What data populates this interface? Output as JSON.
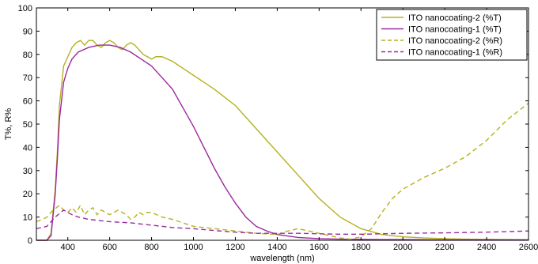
{
  "chart_data": {
    "type": "line",
    "title": "",
    "xlabel": "wavelength (nm)",
    "ylabel": "T%, R%",
    "xlim": [
      250,
      2600
    ],
    "ylim": [
      0,
      100
    ],
    "xticks": [
      400,
      600,
      800,
      1000,
      1200,
      1400,
      1600,
      1800,
      2000,
      2200,
      2400,
      2600
    ],
    "yticks": [
      0,
      10,
      20,
      30,
      40,
      50,
      60,
      70,
      80,
      90,
      100
    ],
    "grid": false,
    "legend_position": "top-right",
    "series": [
      {
        "name": "ITO nanocoating-2 (%T)",
        "color": "#b5b21e",
        "dash": "solid",
        "x": [
          250,
          300,
          320,
          340,
          350,
          360,
          380,
          400,
          420,
          440,
          460,
          480,
          500,
          520,
          540,
          560,
          580,
          600,
          620,
          640,
          660,
          680,
          700,
          720,
          740,
          760,
          780,
          800,
          820,
          850,
          900,
          950,
          1000,
          1100,
          1200,
          1300,
          1400,
          1500,
          1600,
          1700,
          1800,
          1900,
          2000,
          2100,
          2200,
          2300,
          2400,
          2500,
          2600
        ],
        "y": [
          0,
          0,
          3,
          22,
          38,
          58,
          75,
          79,
          83,
          85,
          86,
          84,
          86,
          86,
          84,
          83,
          85,
          86,
          85,
          83,
          82,
          84,
          85,
          84,
          82,
          80,
          79,
          78,
          79,
          79,
          77,
          74,
          71,
          65,
          58,
          48,
          38,
          28,
          18,
          10,
          5,
          2.5,
          1.5,
          1,
          0.7,
          0.5,
          0.4,
          0.3,
          0.2
        ]
      },
      {
        "name": "ITO nanocoating-1 (%T)",
        "color": "#9b2a9e",
        "dash": "solid",
        "x": [
          250,
          300,
          320,
          340,
          350,
          360,
          380,
          400,
          420,
          450,
          500,
          550,
          600,
          650,
          700,
          750,
          800,
          850,
          900,
          950,
          1000,
          1050,
          1100,
          1150,
          1200,
          1250,
          1300,
          1350,
          1400,
          1500,
          1600,
          1700,
          1800,
          1900,
          2000,
          2200,
          2400,
          2600
        ],
        "y": [
          0,
          0,
          2,
          20,
          35,
          52,
          68,
          74,
          78,
          81,
          83,
          84,
          84,
          83,
          81,
          78,
          75,
          70,
          65,
          57,
          49,
          40,
          31,
          23,
          16,
          10,
          6,
          4,
          2.5,
          1.2,
          0.7,
          0.5,
          0.4,
          0.3,
          0.3,
          0.2,
          0.2,
          0.2
        ]
      },
      {
        "name": "ITO nanocoating-2 (%R)",
        "color": "#b5b21e",
        "dash": "dashed",
        "x": [
          250,
          280,
          300,
          330,
          360,
          380,
          400,
          420,
          440,
          460,
          480,
          500,
          520,
          540,
          560,
          580,
          600,
          620,
          640,
          660,
          680,
          700,
          720,
          740,
          760,
          780,
          800,
          850,
          900,
          1000,
          1100,
          1200,
          1300,
          1400,
          1450,
          1500,
          1550,
          1600,
          1700,
          1750,
          1800,
          1850,
          1900,
          1950,
          2000,
          2100,
          2200,
          2300,
          2400,
          2500,
          2600
        ],
        "y": [
          8,
          9,
          10,
          13,
          15,
          13,
          12,
          14,
          12,
          15,
          11,
          13,
          14,
          11,
          13,
          12,
          11,
          12,
          13,
          12,
          11,
          9,
          10,
          12,
          11,
          12,
          12,
          10,
          9,
          6,
          5,
          4,
          3,
          2.5,
          4,
          5,
          4,
          3,
          1,
          0.5,
          1.5,
          5,
          12,
          18,
          22,
          27,
          31,
          36,
          43,
          52,
          59
        ]
      },
      {
        "name": "ITO nanocoating-1 (%R)",
        "color": "#9b2a9e",
        "dash": "dashed",
        "x": [
          250,
          300,
          340,
          380,
          400,
          420,
          450,
          500,
          550,
          600,
          700,
          800,
          900,
          1000,
          1100,
          1200,
          1300,
          1400,
          1500,
          1600,
          1700,
          1800,
          1900,
          2000,
          2200,
          2400,
          2600
        ],
        "y": [
          5,
          6,
          10,
          13,
          12,
          11,
          10,
          9,
          8.5,
          8,
          7.5,
          6.5,
          5.5,
          5,
          4.2,
          3.5,
          3,
          3,
          3,
          2.8,
          2.6,
          2.6,
          2.8,
          3,
          3.2,
          3.5,
          4
        ]
      }
    ]
  }
}
